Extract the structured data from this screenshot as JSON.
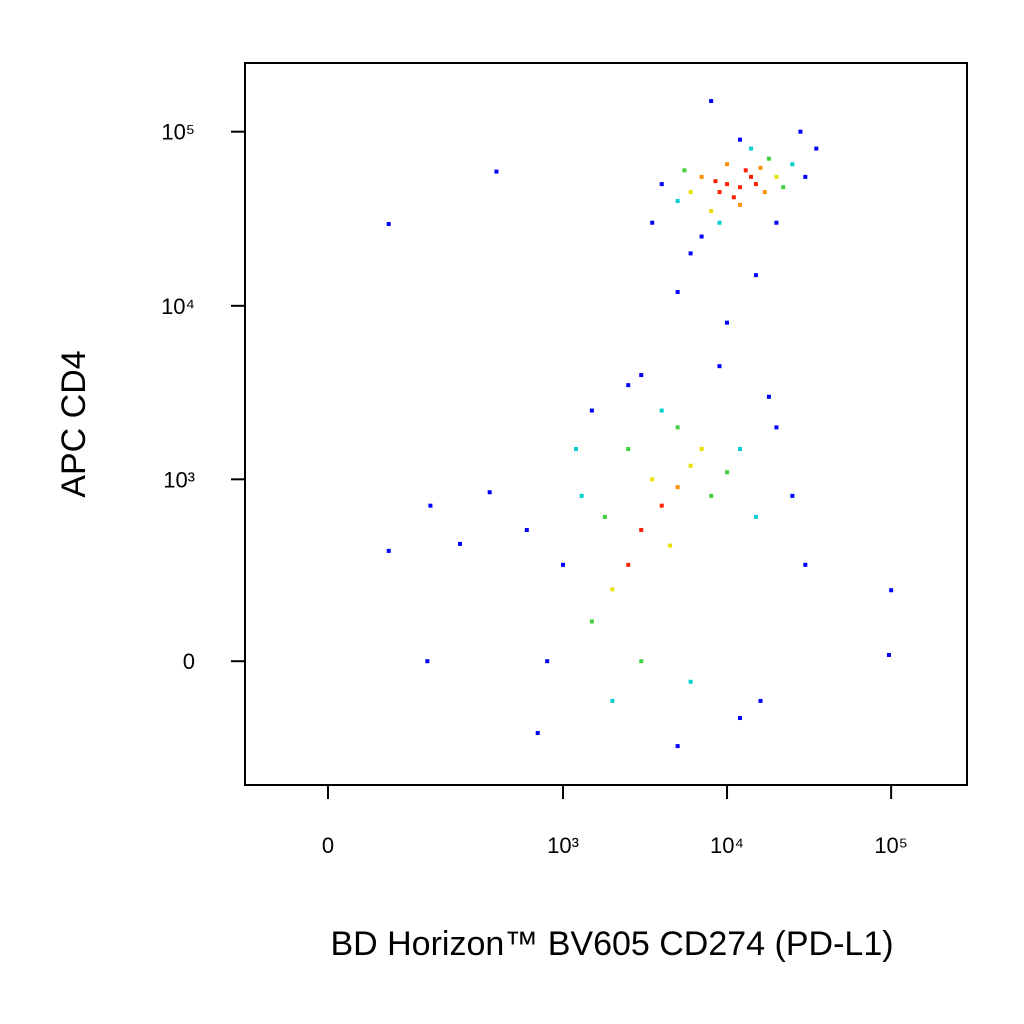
{
  "chart_data": {
    "type": "scatter",
    "xlabel": "BD Horizon™ BV605 CD274 (PD-L1)",
    "ylabel": "APC CD4",
    "xscale": "biexponential",
    "yscale": "biexponential",
    "xlim": [
      -107,
      290000
    ],
    "ylim": [
      -450,
      248000
    ],
    "xticks": [
      0,
      {
        "value": 1000,
        "label": "10³"
      },
      {
        "value": 10000,
        "label": "10⁴"
      },
      {
        "value": 100000,
        "label": "10⁵"
      }
    ],
    "yticks": [
      0,
      {
        "value": 1000,
        "label": "10³"
      },
      {
        "value": 10000,
        "label": "10⁴"
      },
      {
        "value": 100000,
        "label": "10⁵"
      }
    ],
    "series": [
      {
        "color": "#ff2000",
        "x": [
          10000,
          12000,
          14000,
          9000,
          11000,
          13000,
          15000,
          8500,
          3000,
          4000,
          2500
        ],
        "y": [
          50000,
          48000,
          55000,
          45000,
          42000,
          60000,
          50000,
          52000,
          500,
          700,
          300
        ]
      },
      {
        "color": "#ff9000",
        "x": [
          7000,
          17000,
          10000,
          16000,
          12000,
          5000
        ],
        "y": [
          55000,
          45000,
          65000,
          62000,
          38000,
          900
        ]
      },
      {
        "color": "#e8e000",
        "x": [
          6000,
          20000,
          8000,
          3500,
          6000,
          2000,
          4500,
          7000
        ],
        "y": [
          45000,
          55000,
          35000,
          1000,
          1200,
          200,
          400,
          1500
        ]
      },
      {
        "color": "#40d040",
        "x": [
          18000,
          5500,
          22000,
          1800,
          2500,
          8000,
          3000,
          5000,
          10000,
          1500
        ],
        "y": [
          70000,
          60000,
          48000,
          600,
          1500,
          800,
          0,
          2000,
          1100,
          100
        ]
      },
      {
        "color": "#00d0d0",
        "x": [
          5000,
          25000,
          9000,
          14000,
          1300,
          12000,
          2000,
          6000,
          4000,
          15000,
          1200
        ],
        "y": [
          40000,
          65000,
          30000,
          80000,
          800,
          1500,
          -100,
          -50,
          2500,
          600,
          1500
        ]
      },
      {
        "color": "#0000ff",
        "x": [
          4000,
          30000,
          7000,
          20000,
          12000,
          35000,
          3500,
          8000,
          28000,
          6000,
          15000,
          10000,
          5000,
          1000,
          800,
          20000,
          18000,
          700,
          3000,
          9000,
          25000,
          1500,
          12000,
          600,
          30000,
          5000,
          2500,
          16000,
          71,
          390,
          71,
          147,
          140,
          230,
          354,
          97000,
          100000
        ],
        "y": [
          50000,
          55000,
          25000,
          30000,
          90000,
          80000,
          30000,
          150000,
          100000,
          20000,
          15000,
          8000,
          12000,
          300,
          0,
          2000,
          3000,
          -200,
          4000,
          4500,
          800,
          2500,
          -150,
          500,
          300,
          -250,
          3500,
          -100,
          29500,
          59000,
          370,
          700,
          0,
          410,
          840,
          15,
          197
        ]
      }
    ]
  }
}
